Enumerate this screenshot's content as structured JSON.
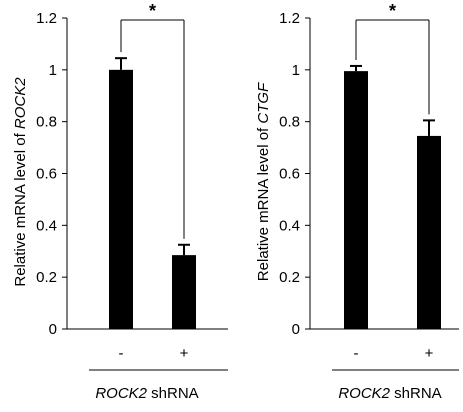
{
  "colors": {
    "bar": "#000000",
    "axis": "#000000",
    "background": "#ffffff"
  },
  "chart_data": [
    {
      "type": "bar",
      "categories": [
        "-",
        "+"
      ],
      "values": [
        1.0,
        0.285
      ],
      "errors": [
        0.045,
        0.04
      ],
      "ylim": [
        0,
        1.2
      ],
      "yticks": [
        "0",
        "0.2",
        "0.4",
        "0.6",
        "0.8",
        "1",
        "1.2"
      ],
      "ylabel_prefix": "Relative mRNA level of ",
      "ylabel_gene": "ROCK2",
      "xlabel_gene": "ROCK2",
      "xlabel_suffix": " shRNA",
      "significance": "*"
    },
    {
      "type": "bar",
      "categories": [
        "-",
        "+"
      ],
      "values": [
        0.995,
        0.745
      ],
      "errors": [
        0.02,
        0.06
      ],
      "ylim": [
        0,
        1.2
      ],
      "yticks": [
        "0",
        "0.2",
        "0.4",
        "0.6",
        "0.8",
        "1",
        "1.2"
      ],
      "ylabel_prefix": "Relative mRNA level of ",
      "ylabel_gene": "CTGF",
      "xlabel_gene": "ROCK2",
      "xlabel_suffix": " shRNA",
      "significance": "*"
    }
  ]
}
